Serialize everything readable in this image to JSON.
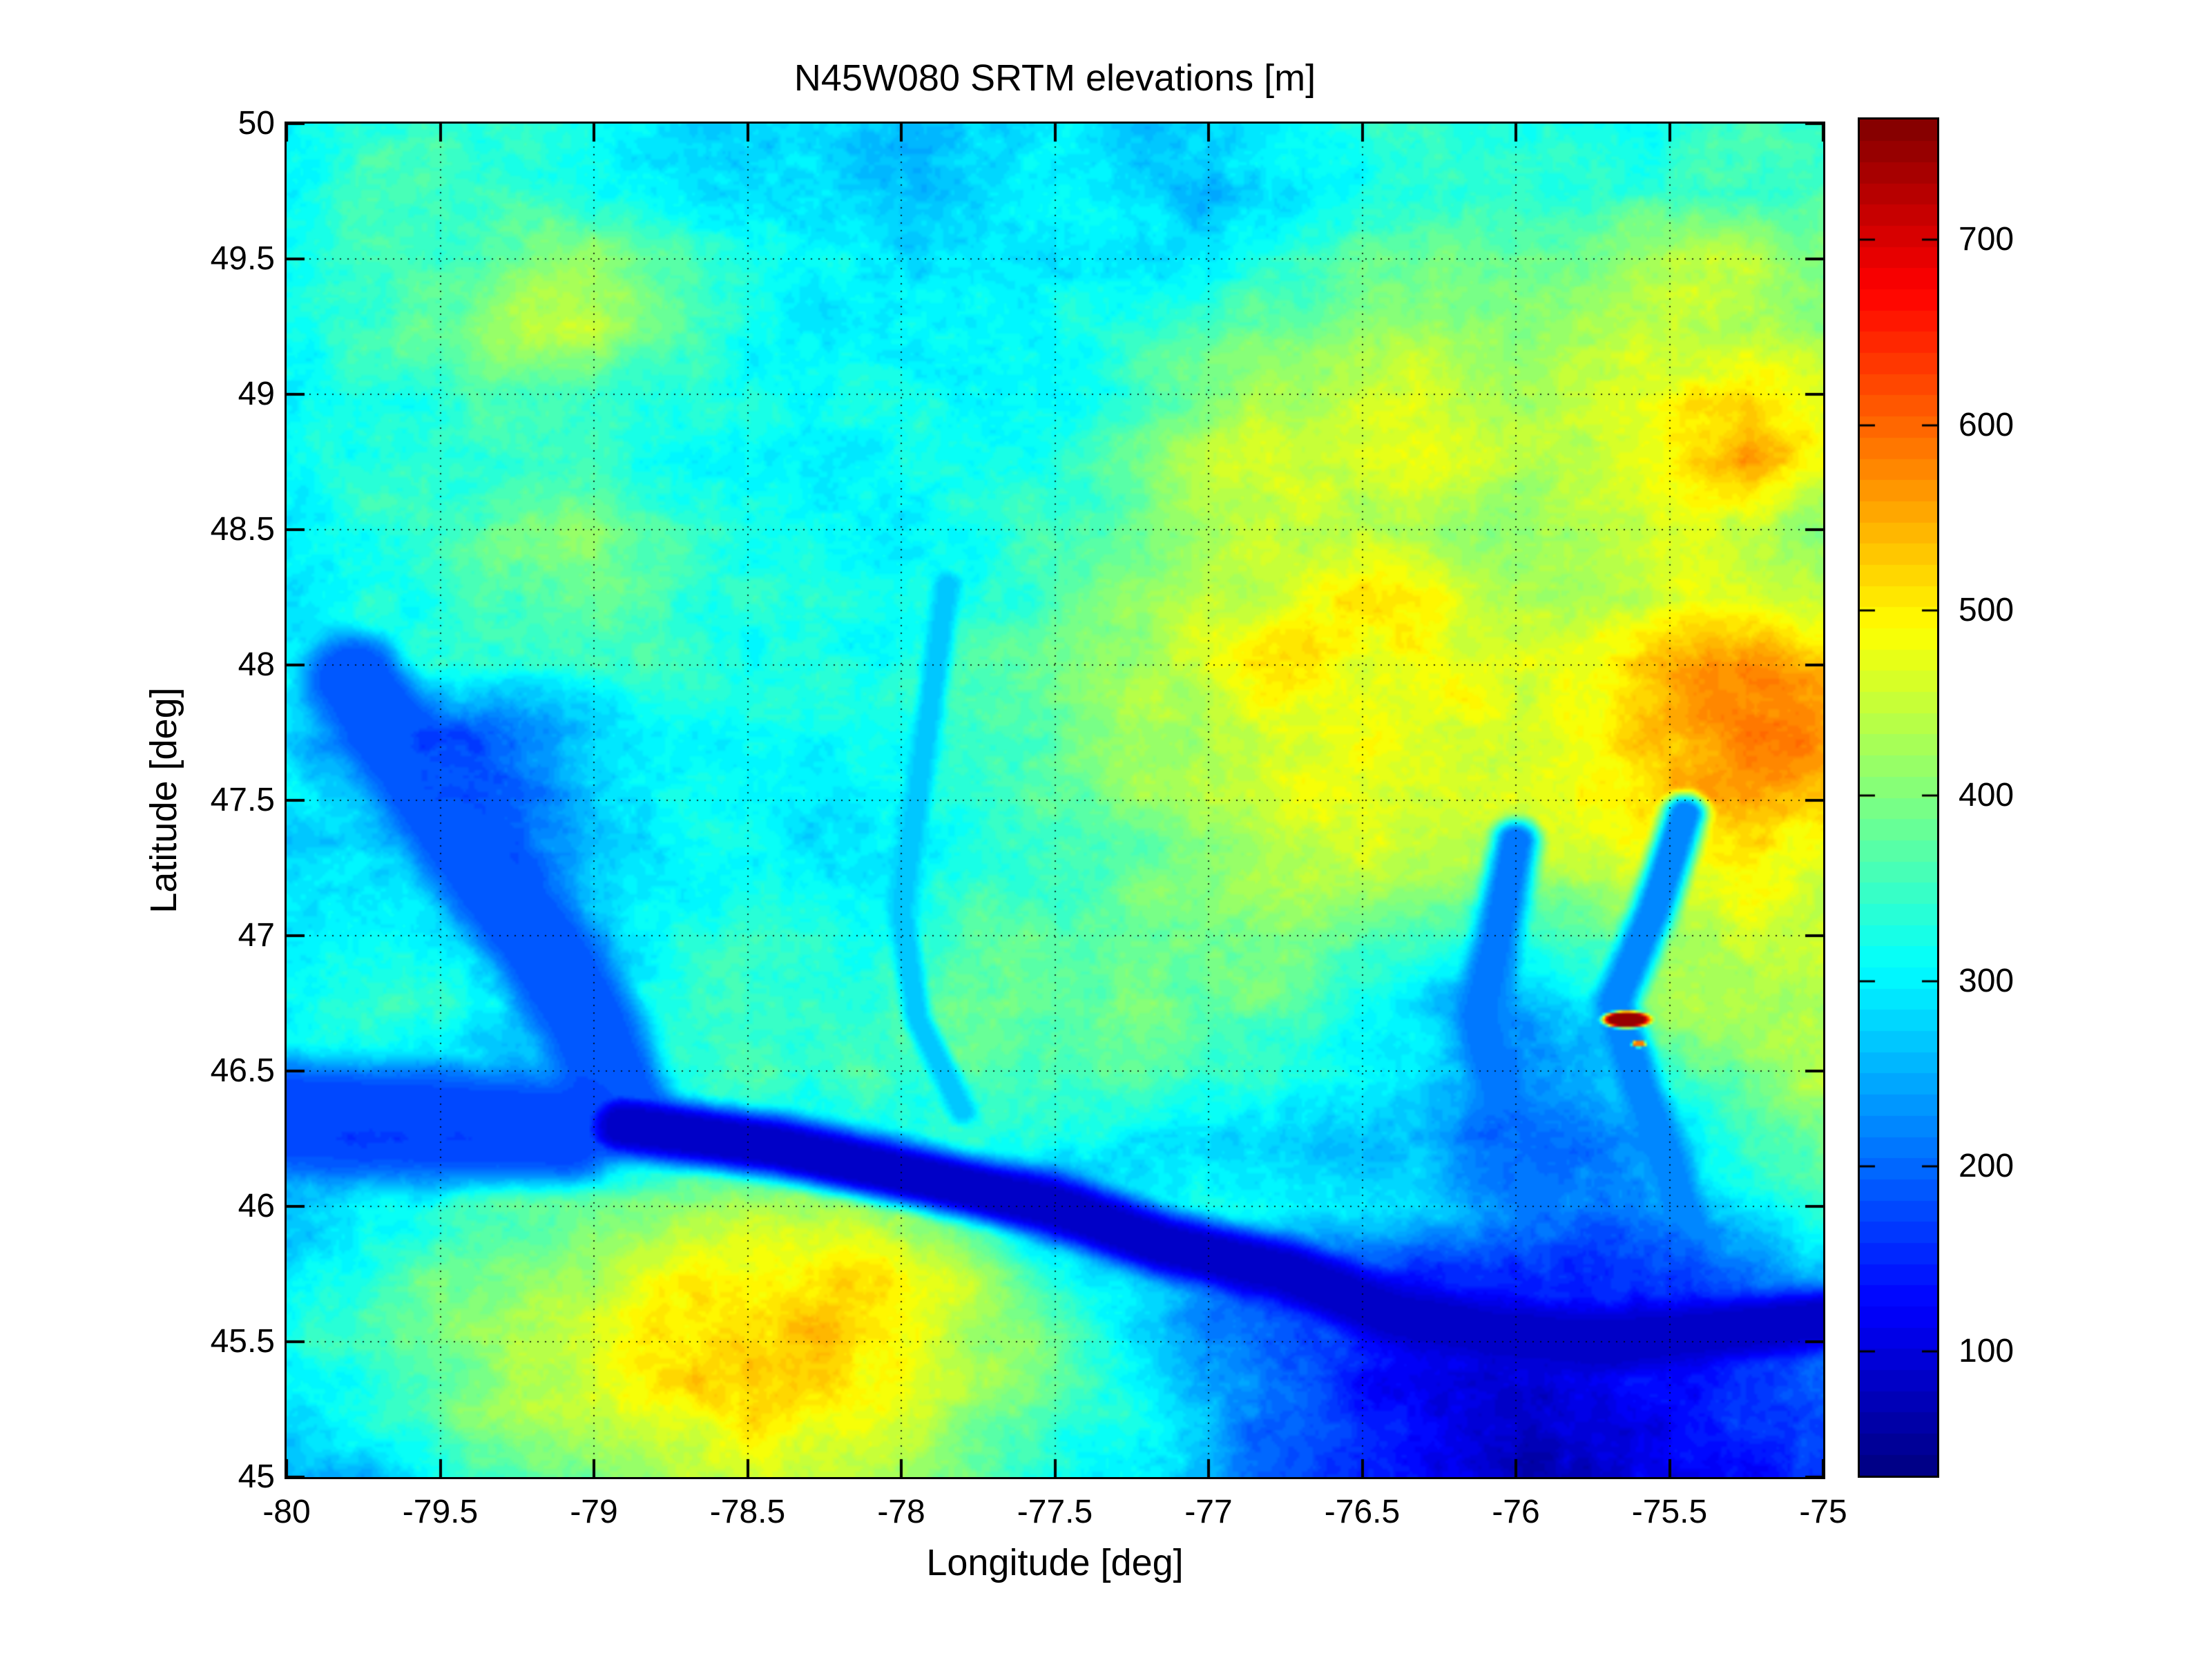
{
  "figure": {
    "title": "N45W080 SRTM elevations [m]",
    "background_color": "#ffffff"
  },
  "axes": {
    "xlabel": "Longitude [deg]",
    "ylabel": "Latitude [deg]",
    "xlim": [
      -80,
      -75
    ],
    "ylim": [
      45,
      50
    ],
    "xticks": [
      -80,
      -79.5,
      -79,
      -78.5,
      -78,
      -77.5,
      -77,
      -76.5,
      -76,
      -75.5,
      -75
    ],
    "yticks": [
      50,
      49.5,
      49,
      48.5,
      48,
      47.5,
      47,
      46.5,
      46,
      45.5,
      45
    ],
    "grid_style": "dotted"
  },
  "colorbar": {
    "ticks": [
      700,
      600,
      500,
      400,
      300,
      200,
      100
    ],
    "vmin": 33,
    "vmax": 765,
    "levels": 64,
    "colormap": "jet"
  },
  "chart_data": {
    "type": "heatmap",
    "title": "N45W080 SRTM elevations [m]",
    "xlabel": "Longitude [deg]",
    "ylabel": "Latitude [deg]",
    "units": "m",
    "colormap": "jet",
    "value_range": [
      33,
      765
    ],
    "x": [
      -80,
      -79.75,
      -79.5,
      -79.25,
      -79,
      -78.75,
      -78.5,
      -78.25,
      -78,
      -77.75,
      -77.5,
      -77.25,
      -77,
      -76.75,
      -76.5,
      -76.25,
      -76,
      -75.75,
      -75.5,
      -75.25,
      -75
    ],
    "y": [
      50,
      49.75,
      49.5,
      49.25,
      49,
      48.75,
      48.5,
      48.25,
      48,
      47.75,
      47.5,
      47.25,
      47,
      46.75,
      46.5,
      46.25,
      46,
      45.75,
      45.5,
      45.25,
      45
    ],
    "values_m": [
      [
        310,
        340,
        360,
        340,
        320,
        300,
        290,
        280,
        260,
        280,
        290,
        270,
        250,
        280,
        310,
        330,
        330,
        340,
        330,
        340,
        340
      ],
      [
        315,
        340,
        355,
        345,
        320,
        300,
        290,
        285,
        270,
        285,
        295,
        280,
        260,
        290,
        320,
        340,
        350,
        345,
        340,
        345,
        345
      ],
      [
        320,
        330,
        340,
        380,
        420,
        360,
        310,
        300,
        290,
        300,
        310,
        320,
        330,
        350,
        380,
        400,
        410,
        420,
        430,
        420,
        400
      ],
      [
        320,
        330,
        360,
        420,
        430,
        370,
        320,
        300,
        295,
        305,
        330,
        340,
        360,
        380,
        420,
        430,
        420,
        430,
        440,
        430,
        410
      ],
      [
        310,
        320,
        330,
        350,
        340,
        330,
        310,
        300,
        300,
        310,
        330,
        350,
        380,
        420,
        450,
        460,
        440,
        450,
        480,
        520,
        470
      ],
      [
        310,
        315,
        325,
        340,
        335,
        320,
        310,
        305,
        310,
        320,
        340,
        370,
        420,
        460,
        480,
        470,
        450,
        460,
        500,
        560,
        500
      ],
      [
        310,
        320,
        340,
        380,
        400,
        380,
        350,
        320,
        310,
        320,
        340,
        390,
        430,
        450,
        460,
        430,
        440,
        450,
        460,
        450,
        430
      ],
      [
        300,
        310,
        330,
        360,
        380,
        360,
        340,
        320,
        315,
        330,
        350,
        400,
        440,
        470,
        520,
        500,
        450,
        460,
        470,
        460,
        440
      ],
      [
        300,
        310,
        320,
        340,
        360,
        350,
        330,
        320,
        320,
        340,
        370,
        420,
        470,
        520,
        480,
        500,
        470,
        480,
        520,
        560,
        540
      ],
      [
        270,
        220,
        180,
        230,
        290,
        310,
        315,
        310,
        315,
        335,
        365,
        410,
        450,
        480,
        490,
        470,
        460,
        480,
        530,
        580,
        550
      ],
      [
        280,
        250,
        190,
        210,
        280,
        300,
        310,
        310,
        315,
        330,
        360,
        400,
        440,
        460,
        470,
        460,
        460,
        480,
        520,
        560,
        520
      ],
      [
        290,
        280,
        230,
        190,
        260,
        300,
        310,
        310,
        320,
        330,
        350,
        380,
        400,
        420,
        430,
        420,
        430,
        450,
        480,
        490,
        470
      ],
      [
        300,
        310,
        290,
        230,
        260,
        310,
        330,
        340,
        350,
        360,
        370,
        380,
        390,
        400,
        380,
        340,
        330,
        360,
        420,
        450,
        440
      ],
      [
        310,
        330,
        330,
        280,
        240,
        320,
        350,
        360,
        370,
        380,
        390,
        390,
        380,
        370,
        330,
        280,
        250,
        300,
        420,
        430,
        420
      ],
      [
        280,
        270,
        260,
        270,
        290,
        330,
        350,
        360,
        370,
        380,
        380,
        370,
        350,
        330,
        300,
        260,
        230,
        260,
        350,
        400,
        420
      ],
      [
        190,
        170,
        180,
        210,
        250,
        290,
        310,
        320,
        330,
        330,
        320,
        300,
        280,
        260,
        240,
        220,
        200,
        220,
        300,
        360,
        390
      ],
      [
        260,
        300,
        340,
        370,
        390,
        410,
        430,
        430,
        410,
        350,
        220,
        280,
        320,
        310,
        290,
        260,
        230,
        210,
        260,
        310,
        340
      ],
      [
        280,
        320,
        370,
        410,
        440,
        470,
        490,
        500,
        470,
        420,
        330,
        260,
        210,
        170,
        150,
        140,
        140,
        150,
        180,
        230,
        280
      ],
      [
        300,
        340,
        390,
        440,
        470,
        500,
        520,
        510,
        480,
        430,
        380,
        300,
        220,
        160,
        130,
        110,
        100,
        110,
        130,
        170,
        220
      ],
      [
        290,
        330,
        380,
        430,
        470,
        490,
        500,
        490,
        460,
        420,
        380,
        320,
        250,
        180,
        130,
        100,
        90,
        90,
        110,
        140,
        180
      ],
      [
        240,
        260,
        300,
        350,
        400,
        430,
        440,
        430,
        410,
        380,
        340,
        290,
        230,
        170,
        130,
        100,
        85,
        80,
        90,
        120,
        150
      ]
    ],
    "water_features": [
      {
        "name": "ottawa-river-valley",
        "elev_m": 85,
        "width": 0.05,
        "falloff": 0.12,
        "path": [
          [
            -78.9,
            46.3
          ],
          [
            -78.4,
            46.22
          ],
          [
            -77.9,
            46.1
          ],
          [
            -77.5,
            46.0
          ],
          [
            -77.15,
            45.86
          ],
          [
            -76.75,
            45.76
          ],
          [
            -76.4,
            45.6
          ],
          [
            -76.05,
            45.53
          ],
          [
            -75.7,
            45.5
          ],
          [
            -75.35,
            45.54
          ],
          [
            -75.0,
            45.58
          ]
        ]
      },
      {
        "name": "lake-timiskaming",
        "elev_m": 185,
        "width": 0.09,
        "falloff": 0.14,
        "path": [
          [
            -79.78,
            47.95
          ],
          [
            -79.6,
            47.65
          ],
          [
            -79.45,
            47.4
          ],
          [
            -79.3,
            47.15
          ],
          [
            -79.15,
            46.93
          ],
          [
            -79.02,
            46.68
          ],
          [
            -78.93,
            46.42
          ]
        ]
      },
      {
        "name": "west-lake-band",
        "elev_m": 175,
        "width": 0.1,
        "falloff": 0.18,
        "path": [
          [
            -80,
            46.34
          ],
          [
            -79.55,
            46.31
          ],
          [
            -79.1,
            46.28
          ]
        ]
      },
      {
        "name": "gatineau-river",
        "elev_m": 210,
        "width": 0.03,
        "falloff": 0.09,
        "path": [
          [
            -76.0,
            47.35
          ],
          [
            -76.06,
            47.0
          ],
          [
            -76.12,
            46.7
          ],
          [
            -76.05,
            46.4
          ],
          [
            -75.95,
            46.1
          ],
          [
            -75.9,
            45.8
          ]
        ]
      },
      {
        "name": "lievre-river",
        "elev_m": 220,
        "width": 0.03,
        "falloff": 0.08,
        "path": [
          [
            -75.45,
            47.45
          ],
          [
            -75.55,
            47.1
          ],
          [
            -75.68,
            46.75
          ],
          [
            -75.6,
            46.45
          ],
          [
            -75.5,
            46.15
          ],
          [
            -75.42,
            45.85
          ]
        ]
      },
      {
        "name": "north-south-river",
        "elev_m": 270,
        "width": 0.02,
        "falloff": 0.05,
        "path": [
          [
            -77.85,
            48.3
          ],
          [
            -77.9,
            47.9
          ],
          [
            -77.95,
            47.5
          ],
          [
            -78.0,
            47.1
          ],
          [
            -77.95,
            46.7
          ],
          [
            -77.8,
            46.35
          ]
        ]
      }
    ],
    "hotspots": [
      {
        "name": "dark-red-peak",
        "lon": -75.64,
        "lat": 46.69,
        "rx": 0.075,
        "ry": 0.03,
        "elev_m": 745
      },
      {
        "name": "orange-dot",
        "lon": -75.6,
        "lat": 46.6,
        "rx": 0.022,
        "ry": 0.012,
        "elev_m": 590
      }
    ]
  }
}
